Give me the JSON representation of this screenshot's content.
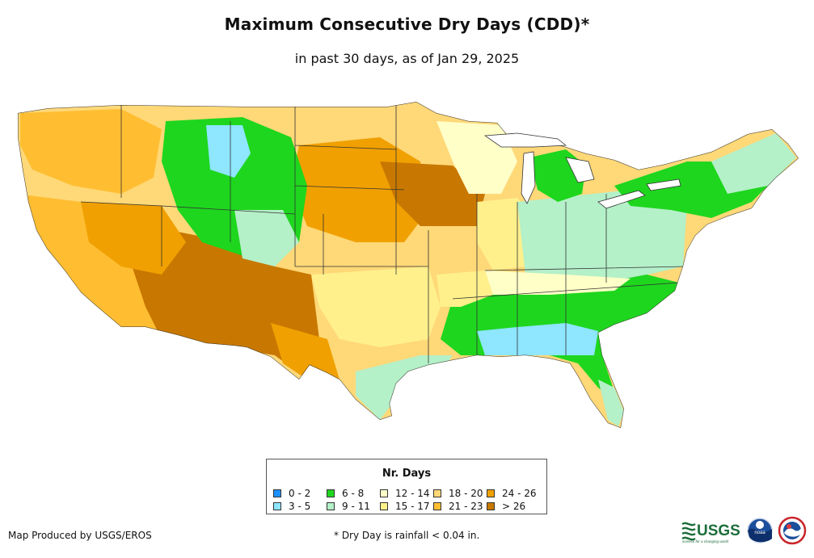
{
  "header": {
    "title": "Maximum Consecutive Dry Days (CDD)*",
    "subtitle": "in past 30 days, as of Jan 29, 2025"
  },
  "legend": {
    "title": "Nr. Days",
    "items": [
      {
        "label": "0 - 2",
        "color": "#1e90ff"
      },
      {
        "label": "3 - 5",
        "color": "#8ee6ff"
      },
      {
        "label": "6 - 8",
        "color": "#1ed61e"
      },
      {
        "label": "9 - 11",
        "color": "#b4f0c8"
      },
      {
        "label": "12 - 14",
        "color": "#ffffc8"
      },
      {
        "label": "15 - 17",
        "color": "#fff08c"
      },
      {
        "label": "18 - 20",
        "color": "#ffd878"
      },
      {
        "label": "21 - 23",
        "color": "#ffbe32"
      },
      {
        "label": "24 - 26",
        "color": "#f0a000"
      },
      {
        "label": "> 26",
        "color": "#c87800"
      }
    ]
  },
  "footer": {
    "credit": "Map Produced by USGS/EROS",
    "footnote": "* Dry Day is rainfall < 0.04 in."
  },
  "logos": {
    "usgs": "USGS",
    "usgs_tagline": "science for a changing world",
    "noaa": "noaa"
  }
}
